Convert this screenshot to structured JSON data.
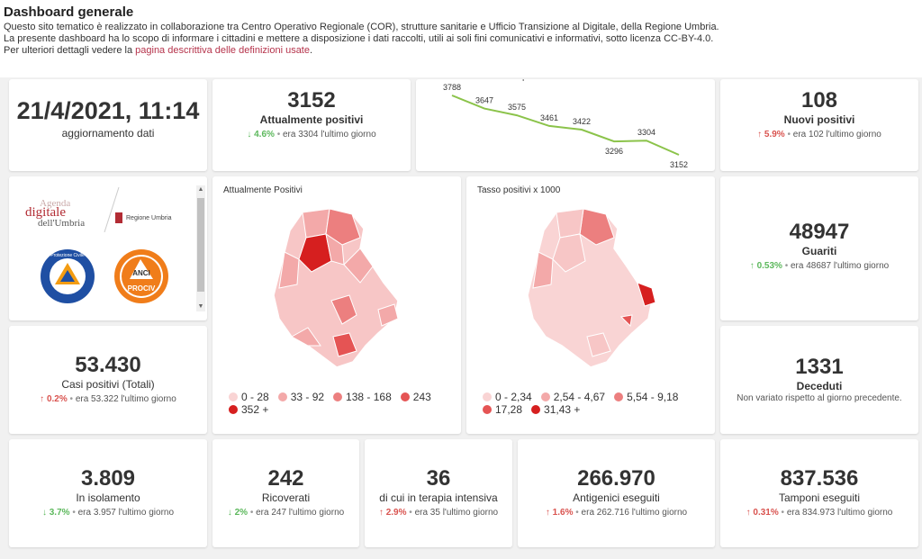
{
  "header": {
    "title": "Dashboard generale",
    "line1": "Questo sito tematico è realizzato in collaborazione tra Centro Operativo Regionale (COR), strutture sanitarie e Ufficio Transizione al Digitale, della Regione Umbria.",
    "line2": "La presente dashboard ha lo scopo di informare i cittadini e mettere a disposizione i dati raccolti, utili ai soli fini comunicativi e informativi, sotto licenza CC-BY-4.0.",
    "line3_prefix": "Per ulteriori dettagli vedere la",
    "line3_link": "pagina descrittiva delle definizioni usate",
    "line3_suffix": "."
  },
  "update": {
    "datetime": "21/4/2021, 11:14",
    "label": "aggiornamento dati"
  },
  "positivi": {
    "value": "3152",
    "label": "Attualmente positivi",
    "pct": "4.6%",
    "prev": "era 3304 l'ultimo giorno",
    "dir": "down"
  },
  "nuovi": {
    "value": "108",
    "label": "Nuovi positivi",
    "pct": "5.9%",
    "prev": "era 102 l'ultimo giorno",
    "dir": "up"
  },
  "guariti": {
    "value": "48947",
    "label": "Guariti",
    "pct": "0.53%",
    "prev": "era 48687 l'ultimo giorno",
    "dir": "up"
  },
  "casi": {
    "value": "53.430",
    "label": "Casi positivi (Totali)",
    "pct": "0.2%",
    "prev": "era 53.322 l'ultimo giorno",
    "dir": "up"
  },
  "deceduti": {
    "value": "1331",
    "label": "Deceduti",
    "note": "Non variato rispetto al giorno precedente."
  },
  "isolamento": {
    "value": "3.809",
    "label": "In isolamento",
    "pct": "3.7%",
    "prev": "era 3.957 l'ultimo giorno",
    "dir": "down"
  },
  "ricoverati": {
    "value": "242",
    "label": "Ricoverati",
    "pct": "2%",
    "prev": "era 247 l'ultimo giorno",
    "dir": "down"
  },
  "terapia": {
    "value": "36",
    "label": "di cui in terapia intensiva",
    "pct": "2.9%",
    "prev": "era 35 l'ultimo giorno",
    "dir": "up"
  },
  "antigenici": {
    "value": "266.970",
    "label": "Antigenici eseguiti",
    "pct": "1.6%",
    "prev": "era 262.716 l'ultimo giorno",
    "dir": "up"
  },
  "tamponi": {
    "value": "837.536",
    "label": "Tamponi eseguiti",
    "pct": "0.31%",
    "prev": "era 834.973 l'ultimo giorno",
    "dir": "up"
  },
  "logos": {
    "agenda_line1": "Agenda",
    "agenda_line2": "digitale",
    "agenda_line3": "dell'Umbria",
    "regione": "Regione Umbria",
    "protezione": "Protezione Civile",
    "anci": "ANCI",
    "prociv": "PROCIV"
  },
  "map1": {
    "title": "Attualmente Positivi",
    "legend": [
      {
        "label": "0 - 28",
        "color": "#f9d4d4"
      },
      {
        "label": "33 - 92",
        "color": "#f3a9a9"
      },
      {
        "label": "138 - 168",
        "color": "#ec7f7f"
      },
      {
        "label": "243",
        "color": "#e55454"
      },
      {
        "label": "352 +",
        "color": "#d61f1f"
      }
    ]
  },
  "map2": {
    "title": "Tasso positivi x 1000",
    "legend": [
      {
        "label": "0 - 2,34",
        "color": "#f9d4d4"
      },
      {
        "label": "2,54 - 4,67",
        "color": "#f3a9a9"
      },
      {
        "label": "5,54 - 9,18",
        "color": "#ec7f7f"
      },
      {
        "label": "17,28",
        "color": "#e55454"
      },
      {
        "label": "31,43 +",
        "color": "#d61f1f"
      }
    ]
  },
  "chart_data": {
    "type": "line",
    "title": "Andamento attualmente positivi ultima settimana",
    "values": [
      3788,
      3647,
      3575,
      3461,
      3422,
      3296,
      3304,
      3152
    ],
    "line_color": "#8bc34a"
  }
}
